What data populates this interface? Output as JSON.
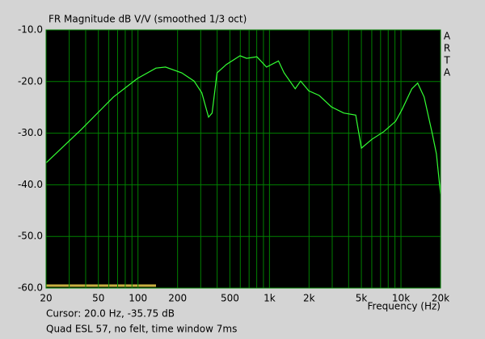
{
  "chart_data": {
    "type": "line",
    "title": "FR Magnitude dB V/V (smoothed 1/3 oct)",
    "side_label": [
      "A",
      "R",
      "T",
      "A"
    ],
    "x_label": "Frequency (Hz)",
    "cursor": "Cursor: 20.0 Hz, -35.75 dB",
    "note": "Quad ESL 57, no felt, time window 7ms",
    "log_x": true,
    "grid": true,
    "xlim": [
      20,
      20000
    ],
    "ylim": [
      -60,
      -10
    ],
    "xticks": [
      20,
      50,
      100,
      200,
      500,
      {
        "value": 1000,
        "label": "1k"
      },
      {
        "value": 2000,
        "label": "2k"
      },
      {
        "value": 5000,
        "label": "5k"
      },
      {
        "value": 10000,
        "label": "10k"
      },
      {
        "value": 20000,
        "label": "20k"
      }
    ],
    "x_minor_ticks": [
      30,
      40,
      60,
      70,
      80,
      90,
      300,
      400,
      600,
      700,
      800,
      900,
      3000,
      4000,
      6000,
      7000,
      8000,
      9000
    ],
    "yticks": [
      {
        "value": -10,
        "label": "-10.0"
      },
      {
        "value": -20,
        "label": "-20.0"
      },
      {
        "value": -30,
        "label": "-30.0"
      },
      {
        "value": -40,
        "label": "-40.0"
      },
      {
        "value": -50,
        "label": "-50.0"
      },
      {
        "value": -60,
        "label": "-60.0"
      }
    ],
    "series": [
      {
        "color": "#33ff33",
        "x": [
          20,
          37,
          65,
          99,
          137,
          162,
          215,
          267,
          306,
          344,
          366,
          399,
          470,
          598,
          670,
          802,
          950,
          1170,
          1290,
          1570,
          1725,
          1990,
          2390,
          2960,
          3670,
          4530,
          5000,
          6000,
          7400,
          9100,
          10200,
          12100,
          13400,
          15000,
          17300,
          18600,
          20000
        ],
        "values": [
          -35.75,
          -29.3,
          -23.0,
          -19.4,
          -17.4,
          -17.2,
          -18.3,
          -19.9,
          -22.2,
          -26.9,
          -26.1,
          -18.3,
          -16.7,
          -15.0,
          -15.5,
          -15.2,
          -17.2,
          -16.0,
          -18.3,
          -21.4,
          -19.9,
          -21.8,
          -22.7,
          -24.9,
          -26.1,
          -26.5,
          -32.9,
          -31.2,
          -29.7,
          -27.7,
          -25.4,
          -21.4,
          -20.3,
          -23.0,
          -30.1,
          -34.0,
          -41.8
        ]
      }
    ]
  }
}
